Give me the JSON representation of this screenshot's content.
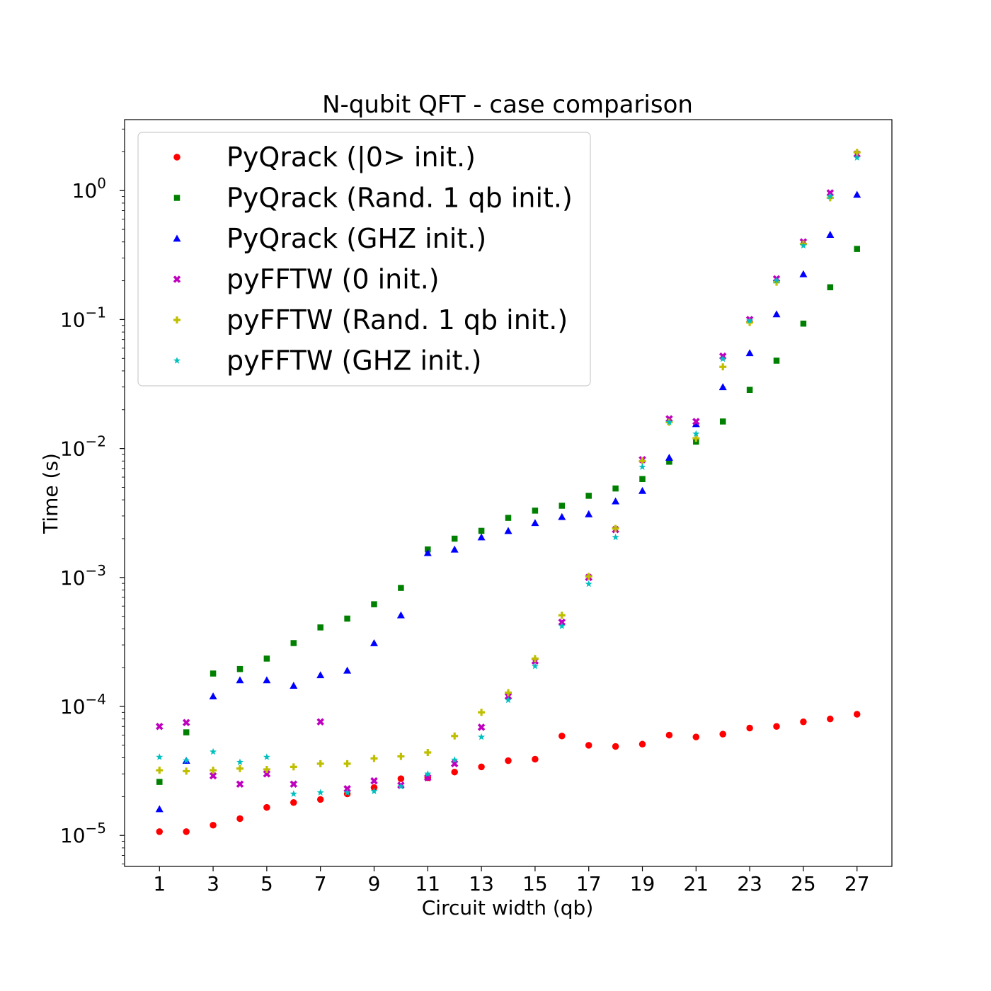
{
  "chart_data": {
    "type": "scatter",
    "title": "N-qubit QFT - case comparison",
    "xlabel": "Circuit width (qb)",
    "ylabel": "Time (s)",
    "x_ticks": [
      "1",
      "3",
      "5",
      "7",
      "9",
      "11",
      "13",
      "15",
      "17",
      "19",
      "21",
      "23",
      "25",
      "27"
    ],
    "y_ticks": [
      {
        "base": "10",
        "exp": "−5",
        "value": 1e-05
      },
      {
        "base": "10",
        "exp": "−4",
        "value": 0.0001
      },
      {
        "base": "10",
        "exp": "−3",
        "value": 0.001
      },
      {
        "base": "10",
        "exp": "−2",
        "value": 0.01
      },
      {
        "base": "10",
        "exp": "−1",
        "value": 0.1
      },
      {
        "base": "10",
        "exp": "0",
        "value": 1
      }
    ],
    "xlim": [
      -0.3,
      28.3
    ],
    "ylim": [
      5.75e-06,
      3.55
    ],
    "yscale": "log",
    "grid": false,
    "legend_position": "upper-left",
    "x": [
      1,
      2,
      3,
      4,
      5,
      6,
      7,
      8,
      9,
      10,
      11,
      12,
      13,
      14,
      15,
      16,
      17,
      18,
      19,
      20,
      21,
      22,
      23,
      24,
      25,
      26,
      27
    ],
    "series": [
      {
        "name": "PyQrack (|0> init.)",
        "marker": "circle",
        "color": "#ff0000",
        "values": [
          1.07e-05,
          1.07e-05,
          1.2e-05,
          1.35e-05,
          1.65e-05,
          1.8e-05,
          1.9e-05,
          2.1e-05,
          2.35e-05,
          2.75e-05,
          2.8e-05,
          3.1e-05,
          3.4e-05,
          3.8e-05,
          3.9e-05,
          5.9e-05,
          5e-05,
          4.9e-05,
          5.1e-05,
          6e-05,
          5.8e-05,
          6.1e-05,
          6.8e-05,
          7e-05,
          7.6e-05,
          8e-05,
          8.7e-05
        ]
      },
      {
        "name": "PyQrack (Rand. 1 qb init.)",
        "marker": "square",
        "color": "#008000",
        "values": [
          2.6e-05,
          6.3e-05,
          0.00018,
          0.000195,
          0.000235,
          0.00031,
          0.00041,
          0.00048,
          0.00062,
          0.00083,
          0.00165,
          0.002,
          0.0023,
          0.0029,
          0.0033,
          0.0036,
          0.0043,
          0.0049,
          0.0058,
          0.0079,
          0.0113,
          0.0162,
          0.0285,
          0.048,
          0.093,
          0.178,
          0.353
        ]
      },
      {
        "name": "PyQrack (GHZ init.)",
        "marker": "triangle",
        "color": "#0000ff",
        "values": [
          1.6e-05,
          3.8e-05,
          0.00012,
          0.00016,
          0.00016,
          0.000145,
          0.000175,
          0.00019,
          0.00031,
          0.00051,
          0.00155,
          0.00165,
          0.00205,
          0.0023,
          0.00265,
          0.00295,
          0.0031,
          0.0039,
          0.0047,
          0.0085,
          0.0155,
          0.03,
          0.055,
          0.11,
          0.225,
          0.455,
          0.93
        ]
      },
      {
        "name": "pyFFTW (0 init.)",
        "marker": "x",
        "color": "#bf00bf",
        "values": [
          7e-05,
          7.5e-05,
          2.9e-05,
          2.5e-05,
          3e-05,
          2.5e-05,
          7.6e-05,
          2.3e-05,
          2.65e-05,
          2.45e-05,
          2.8e-05,
          3.6e-05,
          6.9e-05,
          0.00012,
          0.000225,
          0.00045,
          0.001,
          0.00235,
          0.0082,
          0.017,
          0.0162,
          0.052,
          0.1,
          0.207,
          0.4,
          0.96,
          1.92
        ]
      },
      {
        "name": "pyFFTW (Rand. 1 qb init.)",
        "marker": "plus",
        "color": "#bfbf00",
        "values": [
          3.2e-05,
          3.15e-05,
          3.2e-05,
          3.3e-05,
          3.25e-05,
          3.4e-05,
          3.6e-05,
          3.6e-05,
          3.95e-05,
          4.1e-05,
          4.4e-05,
          5.9e-05,
          9e-05,
          0.000128,
          0.000235,
          0.00051,
          0.00102,
          0.0024,
          0.008,
          0.016,
          0.012,
          0.043,
          0.095,
          0.195,
          0.385,
          0.88,
          1.98
        ]
      },
      {
        "name": "pyFFTW (GHZ init.)",
        "marker": "star",
        "color": "#00bfbf",
        "values": [
          4.05e-05,
          3.8e-05,
          4.45e-05,
          3.7e-05,
          4.05e-05,
          2.1e-05,
          2.15e-05,
          2.15e-05,
          2.2e-05,
          2.4e-05,
          3e-05,
          3.85e-05,
          5.8e-05,
          0.000112,
          0.000205,
          0.00042,
          0.00089,
          0.00205,
          0.0072,
          0.016,
          0.013,
          0.0495,
          0.098,
          0.2,
          0.375,
          0.9,
          1.8
        ]
      }
    ]
  }
}
